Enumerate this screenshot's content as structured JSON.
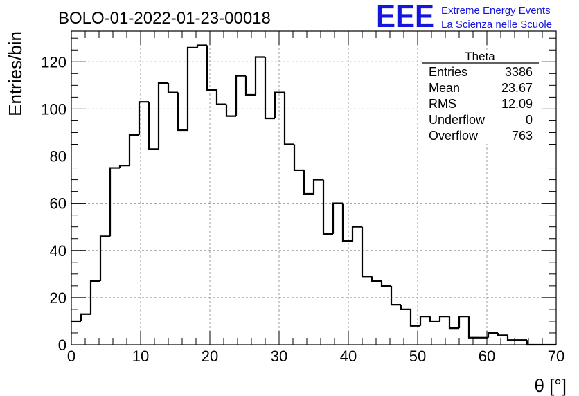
{
  "chart_data": {
    "type": "histogram",
    "title": "BOLO-01-2022-01-23-00018",
    "xlabel": "θ [°]",
    "ylabel": "Entries/bin",
    "xlim": [
      0,
      70
    ],
    "ylim": [
      0,
      133
    ],
    "bin_width": 1.4,
    "x_ticks": [
      "0",
      "10",
      "20",
      "30",
      "40",
      "50",
      "60",
      "70"
    ],
    "y_ticks": [
      "0",
      "20",
      "40",
      "60",
      "80",
      "100",
      "120"
    ],
    "grid": true,
    "values": [
      10,
      13,
      27,
      46,
      75,
      76,
      89,
      103,
      83,
      111,
      107,
      91,
      126,
      127,
      108,
      102,
      97,
      114,
      106,
      122,
      96,
      107,
      85,
      74,
      64,
      70,
      47,
      60,
      44,
      50,
      29,
      27,
      25,
      17,
      15,
      8,
      12,
      10,
      12,
      7,
      12,
      3,
      3,
      5,
      4,
      2,
      2,
      0,
      0,
      0
    ],
    "stats_box": {
      "title": "Theta",
      "rows": [
        {
          "label": "Entries",
          "value": "3386"
        },
        {
          "label": "Mean",
          "value": "23.67"
        },
        {
          "label": "RMS",
          "value": "12.09"
        },
        {
          "label": "Underflow",
          "value": "0"
        },
        {
          "label": "Overflow",
          "value": "763"
        }
      ]
    }
  },
  "logo": {
    "mark": "EEE",
    "line1": "Extreme Energy Events",
    "line2": "La Scienza nelle Scuole",
    "color": "#1515e0"
  },
  "colors": {
    "hist_line": "#000000",
    "grid": "#9a9a9a",
    "axis": "#000000"
  }
}
